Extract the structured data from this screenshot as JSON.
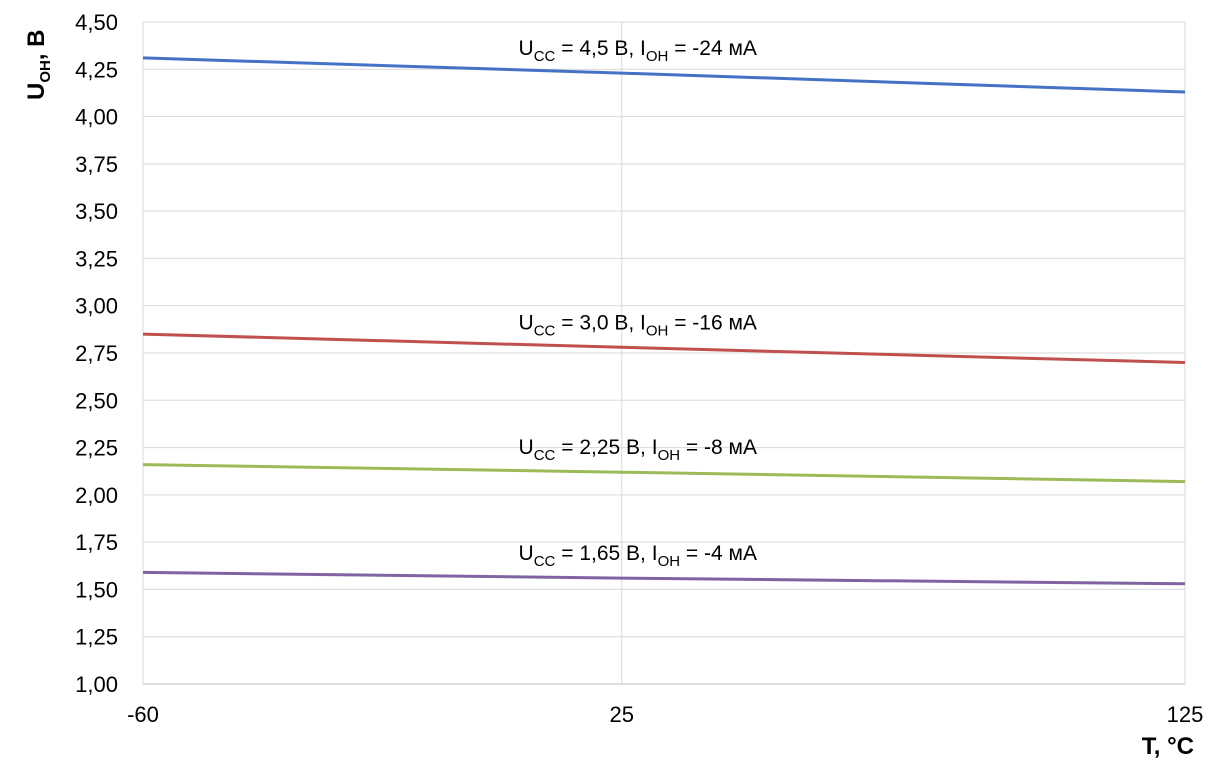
{
  "chart_data": {
    "type": "line",
    "xlabel": "T, °C",
    "ylabel": "U",
    "ylabel_sub": "OH",
    "ylabel_suffix": ", В",
    "x_ticks": [
      "-60",
      "25",
      "125"
    ],
    "x_tick_values": [
      -60,
      25,
      125
    ],
    "xlim": [
      -60,
      125
    ],
    "y_ticks": [
      "1,00",
      "1,25",
      "1,50",
      "1,75",
      "2,00",
      "2,25",
      "2,50",
      "2,75",
      "3,00",
      "3,25",
      "3,50",
      "3,75",
      "4,00",
      "4,25",
      "4,50"
    ],
    "y_tick_values": [
      1.0,
      1.25,
      1.5,
      1.75,
      2.0,
      2.25,
      2.5,
      2.75,
      3.0,
      3.25,
      3.5,
      3.75,
      4.0,
      4.25,
      4.5
    ],
    "ylim": [
      1.0,
      4.5
    ],
    "grid": true,
    "series": [
      {
        "label": {
          "u": "U",
          "u_sub": "CC",
          "u_val": " = 4,5 В, ",
          "i": "I",
          "i_sub": "OH",
          "i_val": " = -24 мА"
        },
        "color": "#4472c4",
        "x": [
          -60,
          25,
          125
        ],
        "y": [
          4.31,
          4.23,
          4.13
        ]
      },
      {
        "label": {
          "u": "U",
          "u_sub": "CC",
          "u_val": " = 3,0 В, ",
          "i": "I",
          "i_sub": "OH",
          "i_val": " = -16 мА"
        },
        "color": "#c0504d",
        "x": [
          -60,
          25,
          125
        ],
        "y": [
          2.85,
          2.78,
          2.7
        ]
      },
      {
        "label": {
          "u": "U",
          "u_sub": "CC",
          "u_val": " = 2,25 В, ",
          "i": "I",
          "i_sub": "OH",
          "i_val": " = -8 мА"
        },
        "color": "#9bbb59",
        "x": [
          -60,
          25,
          125
        ],
        "y": [
          2.16,
          2.12,
          2.07
        ]
      },
      {
        "label": {
          "u": "U",
          "u_sub": "CC",
          "u_val": " = 1,65 В, ",
          "i": "I",
          "i_sub": "OH",
          "i_val": " = -4 мА"
        },
        "color": "#8064a2",
        "x": [
          -60,
          25,
          125
        ],
        "y": [
          1.59,
          1.56,
          1.53
        ]
      }
    ]
  }
}
